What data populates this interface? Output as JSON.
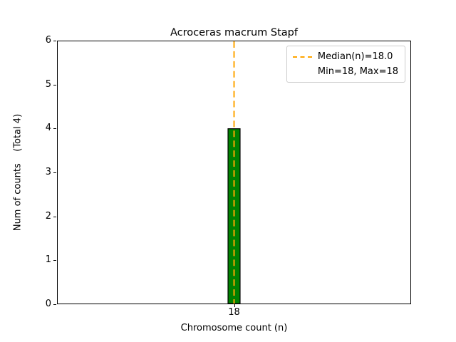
{
  "chart_data": {
    "type": "bar",
    "title": "Acroceras macrum Stapf",
    "xlabel": "Chromosome count (n)",
    "ylabel": "Num of counts    (Total 4)",
    "categories": [
      "18"
    ],
    "values": [
      4
    ],
    "total_label": "(Total 4)",
    "ylim": [
      0,
      6
    ],
    "yticks": [
      0,
      1,
      2,
      3,
      4,
      5,
      6
    ],
    "grid": false,
    "bar_color": "#008000",
    "bar_edge_color": "#000000",
    "median_line": {
      "value": 18,
      "color": "#ffa500",
      "style": "dashed"
    },
    "legend": {
      "position": "top-right",
      "entries": [
        {
          "label": "Median(n)=18.0",
          "marker": "dashed-line",
          "color": "#ffa500"
        },
        {
          "label": "Min=18, Max=18",
          "marker": "none"
        }
      ]
    }
  }
}
